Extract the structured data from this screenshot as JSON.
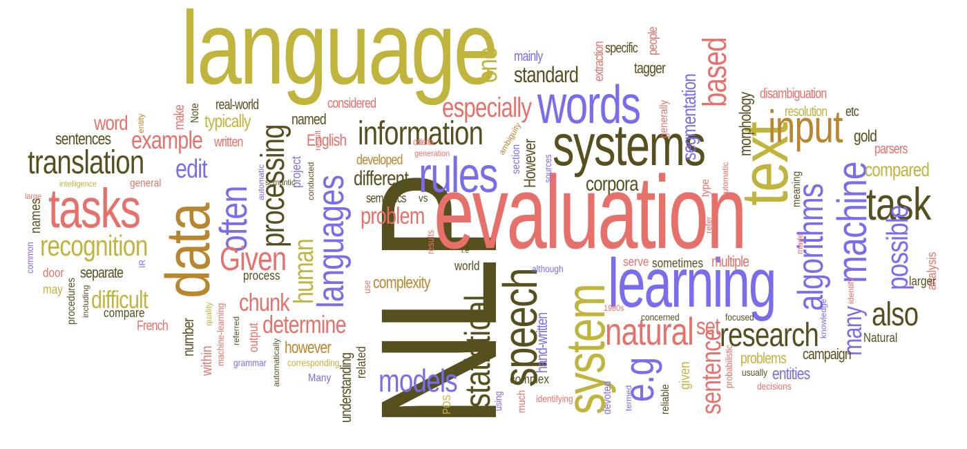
{
  "palette": {
    "olive": "#c0b43c",
    "dark_olive": "#56501f",
    "salmon": "#e8706a",
    "purple": "#7a6cef",
    "brown": "#b9862e"
  },
  "words": [
    "language",
    "NLP",
    "evaluation",
    "learning",
    "systems",
    "text",
    "words",
    "rules",
    "data",
    "tasks",
    "speech",
    "system",
    "translation",
    "statistical",
    "information",
    "input",
    "task",
    "machine",
    "algorithms",
    "natural",
    "languages",
    "often",
    "processing",
    "recognition",
    "Given",
    "human",
    "possible",
    "many",
    "also",
    "research",
    "e.g",
    "sentence",
    "set",
    "models",
    "based",
    "one",
    "especially",
    "standard",
    "example",
    "word",
    "sentences",
    "edit",
    "difficult",
    "chunk",
    "determine",
    "problem",
    "different",
    "corpora",
    "segmentation",
    "morphology",
    "English",
    "named",
    "typically",
    "make",
    "real-world",
    "Note",
    "written",
    "considered",
    "entity",
    "mainly",
    "specific",
    "people",
    "tagger",
    "extraction",
    "disambiguation",
    "resolution",
    "etc",
    "gold",
    "parsers",
    "compared",
    "generally",
    "criteria",
    "ambiguity",
    "section",
    "However",
    "developed",
    "generation",
    "result",
    "sources",
    "semantics",
    "vs",
    "project",
    "conducted",
    "type",
    "meaning",
    "Automatic",
    "refer",
    "made",
    "analysis",
    "large",
    "names",
    "common",
    "intelligence",
    "automatic",
    "semantic",
    "general",
    "recognition",
    "separate",
    "door",
    "IR",
    "may",
    "procedures",
    "including",
    "compare",
    "French",
    "number",
    "quality",
    "machine-learning",
    "within",
    "referred",
    "grammar",
    "output",
    "automatically",
    "corresponding",
    "however",
    "Many",
    "understanding",
    "related",
    "POS",
    "using",
    "complexity",
    "results",
    "use",
    "world",
    "i.e",
    "although",
    "hand-written",
    "much",
    "complex",
    "identifying",
    "1980s",
    "serve",
    "sometimes",
    "concerned",
    "devoted",
    "termed",
    "reliable",
    "given",
    "multiple",
    "focused",
    "probabilistic",
    "problems",
    "usually",
    "decisions",
    "campaign",
    "entities",
    "Natural",
    "knowledge",
    "identify",
    "larger",
    "process"
  ]
}
